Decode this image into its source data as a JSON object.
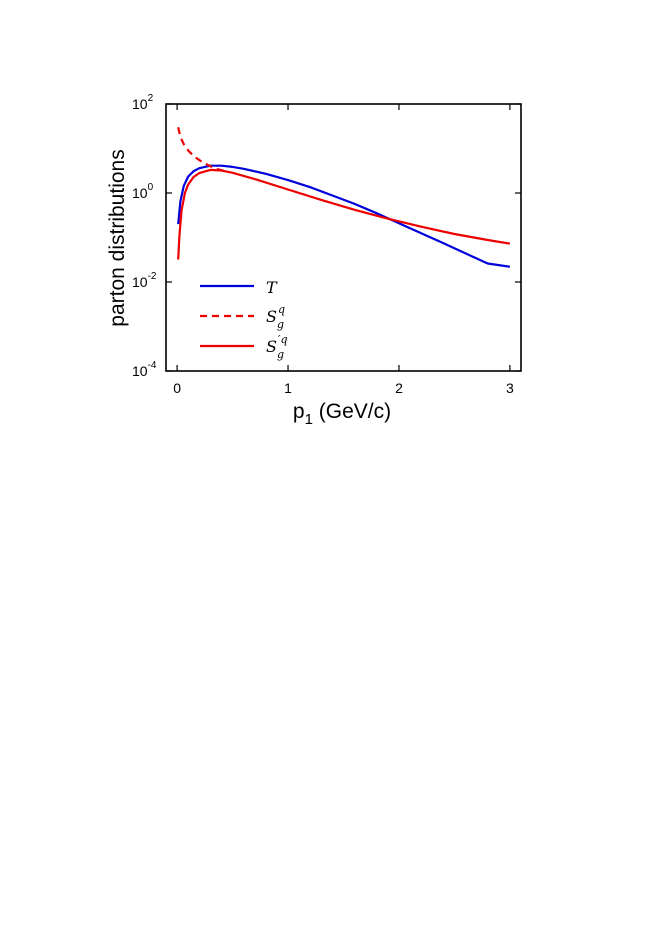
{
  "chart_data": {
    "type": "line",
    "xlabel_main": "p",
    "xlabel_sub": "1",
    "xlabel_rest": " (GeV/c)",
    "ylabel": "parton distributions",
    "xlim": [
      -0.1,
      3.1
    ],
    "ylim": [
      0.0001,
      100
    ],
    "yscale": "log",
    "x_ticks": [
      {
        "value": 0,
        "label": "0"
      },
      {
        "value": 1,
        "label": "1"
      },
      {
        "value": 2,
        "label": "2"
      },
      {
        "value": 3,
        "label": "3"
      }
    ],
    "y_ticks": [
      {
        "value": 100,
        "base": "10",
        "exp": "2"
      },
      {
        "value": 1,
        "base": "10",
        "exp": "0"
      },
      {
        "value": 0.01,
        "base": "10",
        "exp": "-2"
      },
      {
        "value": 0.0001,
        "base": "10",
        "exp": "-4"
      }
    ],
    "grid": false,
    "legend_position": "bottom-left",
    "series": [
      {
        "key": "T",
        "color": "#0000dd",
        "dash": "solid",
        "legend": {
          "main": "T",
          "sub": "",
          "sup": ""
        },
        "x": [
          0.01,
          0.03,
          0.06,
          0.1,
          0.15,
          0.2,
          0.3,
          0.4,
          0.5,
          0.6,
          0.8,
          1.0,
          1.2,
          1.4,
          1.6,
          1.8,
          2.0,
          2.2,
          2.4,
          2.6,
          2.8,
          3.0
        ],
        "y": [
          0.2,
          0.65,
          1.45,
          2.35,
          3.1,
          3.6,
          4.1,
          4.1,
          3.85,
          3.5,
          2.7,
          1.95,
          1.35,
          0.88,
          0.57,
          0.35,
          0.21,
          0.125,
          0.075,
          0.044,
          0.026,
          0.022
        ]
      },
      {
        "key": "Sgq",
        "color": "#ee0000",
        "dash": "dashed",
        "legend": {
          "main": "S",
          "sub": "g",
          "sup": "q"
        },
        "x": [
          0.01,
          0.03,
          0.06,
          0.1,
          0.15,
          0.2,
          0.25,
          0.3,
          0.35,
          0.4,
          0.45
        ],
        "y": [
          30,
          18,
          12.5,
          9,
          6.8,
          5.5,
          4.6,
          4.0,
          3.5,
          3.25,
          3.0
        ]
      },
      {
        "key": "Sgq_prime",
        "color": "#ee0000",
        "dash": "solid",
        "legend": {
          "main": "S",
          "sub": "g",
          "sup": "′q"
        },
        "x": [
          0.01,
          0.02,
          0.04,
          0.07,
          0.1,
          0.15,
          0.2,
          0.3,
          0.4,
          0.5,
          0.7,
          1.0,
          1.3,
          1.6,
          1.9,
          2.2,
          2.5,
          2.8,
          3.0
        ],
        "y": [
          0.032,
          0.1,
          0.4,
          1.0,
          1.55,
          2.3,
          2.8,
          3.3,
          3.2,
          2.85,
          2.05,
          1.2,
          0.7,
          0.42,
          0.265,
          0.175,
          0.12,
          0.088,
          0.073
        ]
      }
    ]
  }
}
